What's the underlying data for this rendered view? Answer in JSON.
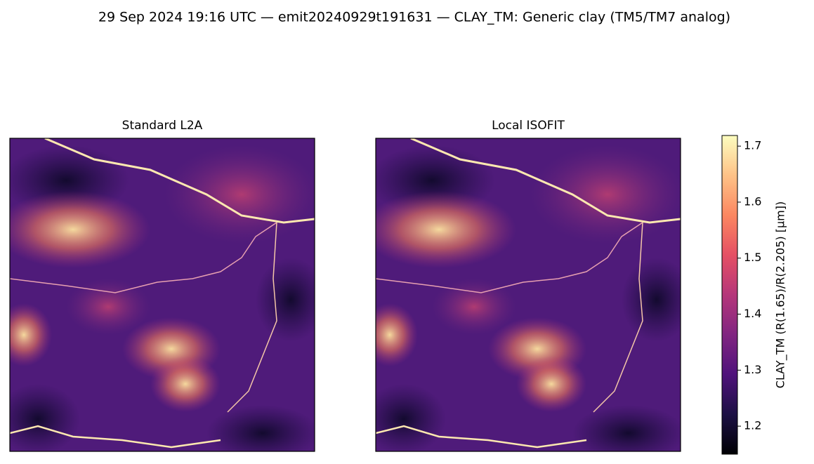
{
  "chart_data": {
    "type": "heatmap",
    "title": "29 Sep 2024 19:16 UTC — emit20240929t191631 — CLAY_TM: Generic clay (TM5/TM7 analog)",
    "panels": [
      {
        "title": "Standard L2A"
      },
      {
        "title": "Local ISOFIT"
      }
    ],
    "colorbar": {
      "label": "CLAY_TM  (R(1.65)/R(2.205)  [µm])",
      "colormap": "magma",
      "lim": [
        1.15,
        1.719
      ],
      "ticks": [
        1.2,
        1.3,
        1.4,
        1.5,
        1.6,
        1.7
      ]
    }
  }
}
